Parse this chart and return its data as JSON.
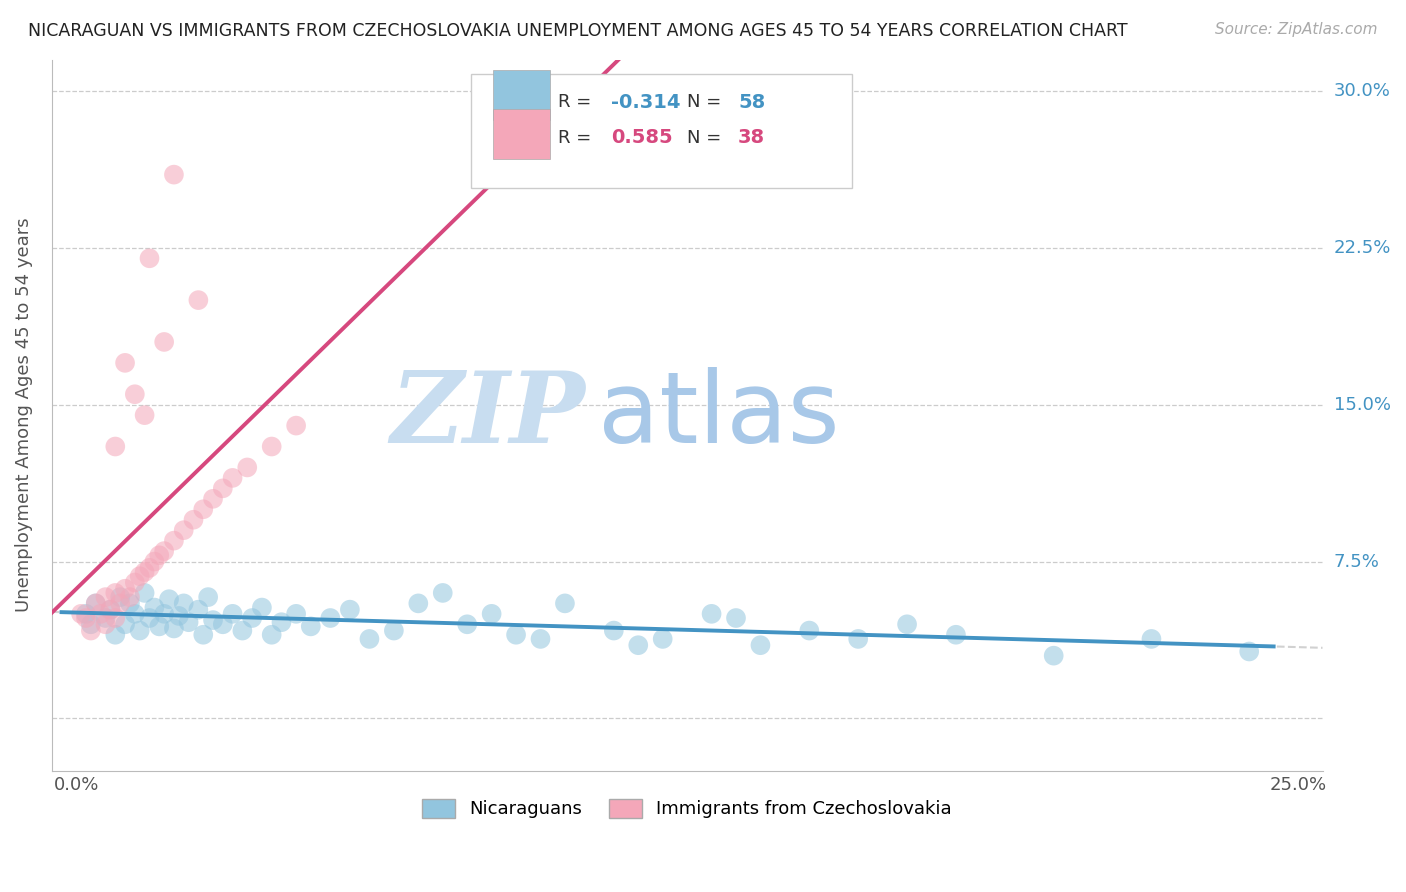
{
  "title": "NICARAGUAN VS IMMIGRANTS FROM CZECHOSLOVAKIA UNEMPLOYMENT AMONG AGES 45 TO 54 YEARS CORRELATION CHART",
  "source": "Source: ZipAtlas.com",
  "ylabel": "Unemployment Among Ages 45 to 54 years",
  "xlim": [
    -0.005,
    0.255
  ],
  "ylim": [
    -0.025,
    0.315
  ],
  "xticks": [
    0.0,
    0.05,
    0.1,
    0.15,
    0.2,
    0.25
  ],
  "xticklabels": [
    "0.0%",
    "",
    "",
    "",
    "",
    "25.0%"
  ],
  "yticks": [
    0.0,
    0.075,
    0.15,
    0.225,
    0.3
  ],
  "yticklabels": [
    "",
    "7.5%",
    "15.0%",
    "22.5%",
    "30.0%"
  ],
  "blue_color": "#92c5de",
  "pink_color": "#f4a7b9",
  "blue_line_color": "#4393c3",
  "pink_line_color": "#d6487e",
  "trendline_gray_color": "#cccccc",
  "R_blue": -0.314,
  "N_blue": 58,
  "R_pink": 0.585,
  "N_pink": 38,
  "legend_label_blue": "Nicaraguans",
  "legend_label_pink": "Immigrants from Czechoslovakia",
  "watermark_zip": "ZIP",
  "watermark_atlas": "atlas",
  "background_color": "#ffffff",
  "grid_color": "#cccccc",
  "blue_x": [
    0.002,
    0.003,
    0.004,
    0.006,
    0.007,
    0.008,
    0.009,
    0.01,
    0.011,
    0.012,
    0.013,
    0.014,
    0.015,
    0.016,
    0.017,
    0.018,
    0.019,
    0.02,
    0.021,
    0.022,
    0.023,
    0.025,
    0.026,
    0.027,
    0.028,
    0.03,
    0.032,
    0.034,
    0.036,
    0.038,
    0.04,
    0.042,
    0.045,
    0.048,
    0.052,
    0.056,
    0.06,
    0.065,
    0.07,
    0.075,
    0.08,
    0.085,
    0.09,
    0.095,
    0.1,
    0.11,
    0.12,
    0.13,
    0.14,
    0.15,
    0.16,
    0.17,
    0.18,
    0.2,
    0.22,
    0.24,
    0.135,
    0.115
  ],
  "blue_y": [
    0.05,
    0.045,
    0.055,
    0.048,
    0.052,
    0.04,
    0.058,
    0.045,
    0.055,
    0.05,
    0.042,
    0.06,
    0.048,
    0.053,
    0.044,
    0.05,
    0.057,
    0.043,
    0.049,
    0.055,
    0.046,
    0.052,
    0.04,
    0.058,
    0.047,
    0.045,
    0.05,
    0.042,
    0.048,
    0.053,
    0.04,
    0.046,
    0.05,
    0.044,
    0.048,
    0.052,
    0.038,
    0.042,
    0.055,
    0.06,
    0.045,
    0.05,
    0.04,
    0.038,
    0.055,
    0.042,
    0.038,
    0.05,
    0.035,
    0.042,
    0.038,
    0.045,
    0.04,
    0.03,
    0.038,
    0.032,
    0.048,
    0.035
  ],
  "pink_x": [
    0.001,
    0.002,
    0.003,
    0.004,
    0.005,
    0.006,
    0.006,
    0.007,
    0.008,
    0.008,
    0.009,
    0.01,
    0.011,
    0.012,
    0.013,
    0.014,
    0.015,
    0.016,
    0.017,
    0.018,
    0.02,
    0.022,
    0.024,
    0.026,
    0.028,
    0.03,
    0.032,
    0.035,
    0.04,
    0.045,
    0.015,
    0.02,
    0.01,
    0.012,
    0.018,
    0.025,
    0.008,
    0.014
  ],
  "pink_y": [
    0.05,
    0.048,
    0.042,
    0.055,
    0.05,
    0.045,
    0.058,
    0.052,
    0.048,
    0.06,
    0.055,
    0.062,
    0.058,
    0.065,
    0.068,
    0.07,
    0.072,
    0.075,
    0.078,
    0.08,
    0.085,
    0.09,
    0.095,
    0.1,
    0.105,
    0.11,
    0.115,
    0.12,
    0.13,
    0.14,
    0.22,
    0.26,
    0.17,
    0.155,
    0.18,
    0.2,
    0.13,
    0.145
  ]
}
